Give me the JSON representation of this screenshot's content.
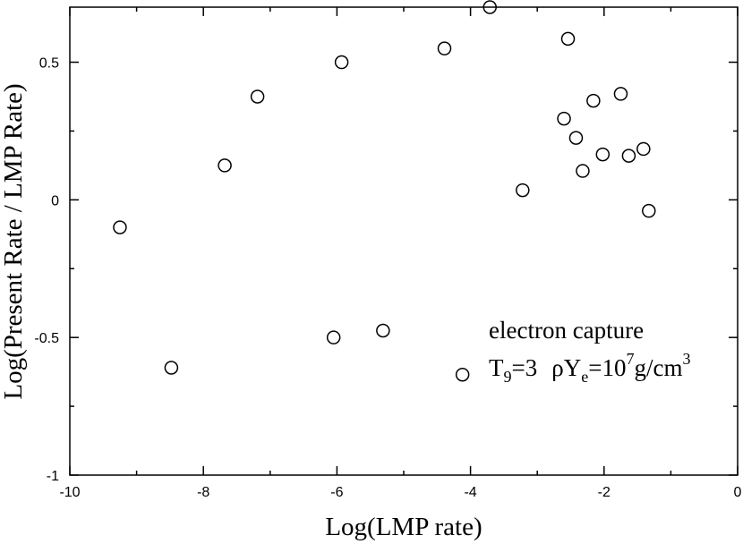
{
  "chart_data": {
    "type": "scatter",
    "title": "",
    "xlabel": "Log(LMP rate)",
    "ylabel": "Log(Present Rate / LMP Rate)",
    "xlim": [
      -10,
      0
    ],
    "ylim": [
      -1,
      0.7
    ],
    "x_ticks": [
      -10,
      -8,
      -6,
      -4,
      -2,
      0
    ],
    "x_tick_labels": [
      "-10",
      "-8",
      "-6",
      "-4",
      "-2",
      "0"
    ],
    "y_ticks": [
      -1,
      -0.5,
      0,
      0.5
    ],
    "y_tick_labels": [
      "-1",
      "-0.5",
      "0",
      "0.5"
    ],
    "grid": false,
    "marker": "open-circle",
    "series": [
      {
        "points": [
          {
            "x": -9.25,
            "y": -0.1
          },
          {
            "x": -8.48,
            "y": -0.61
          },
          {
            "x": -7.68,
            "y": 0.125
          },
          {
            "x": -7.19,
            "y": 0.375
          },
          {
            "x": -6.05,
            "y": -0.5
          },
          {
            "x": -5.93,
            "y": 0.5
          },
          {
            "x": -5.31,
            "y": -0.475
          },
          {
            "x": -4.39,
            "y": 0.55
          },
          {
            "x": -4.12,
            "y": -0.635
          },
          {
            "x": -3.71,
            "y": 0.7
          },
          {
            "x": -3.22,
            "y": 0.035
          },
          {
            "x": -2.6,
            "y": 0.295
          },
          {
            "x": -2.54,
            "y": 0.585
          },
          {
            "x": -2.42,
            "y": 0.225
          },
          {
            "x": -2.32,
            "y": 0.105
          },
          {
            "x": -2.16,
            "y": 0.36
          },
          {
            "x": -2.02,
            "y": 0.165
          },
          {
            "x": -1.75,
            "y": 0.385
          },
          {
            "x": -1.63,
            "y": 0.16
          },
          {
            "x": -1.41,
            "y": 0.185
          },
          {
            "x": -1.33,
            "y": -0.04
          }
        ]
      }
    ],
    "annotations": {
      "line1": "electron capture",
      "t_symbol": "T",
      "t_sub": "9",
      "t_value": "=3",
      "rho": "ρY",
      "rho_sub": "e",
      "eq": "=10",
      "exp1": "7",
      "unit": "g/cm",
      "exp2": "3"
    }
  }
}
